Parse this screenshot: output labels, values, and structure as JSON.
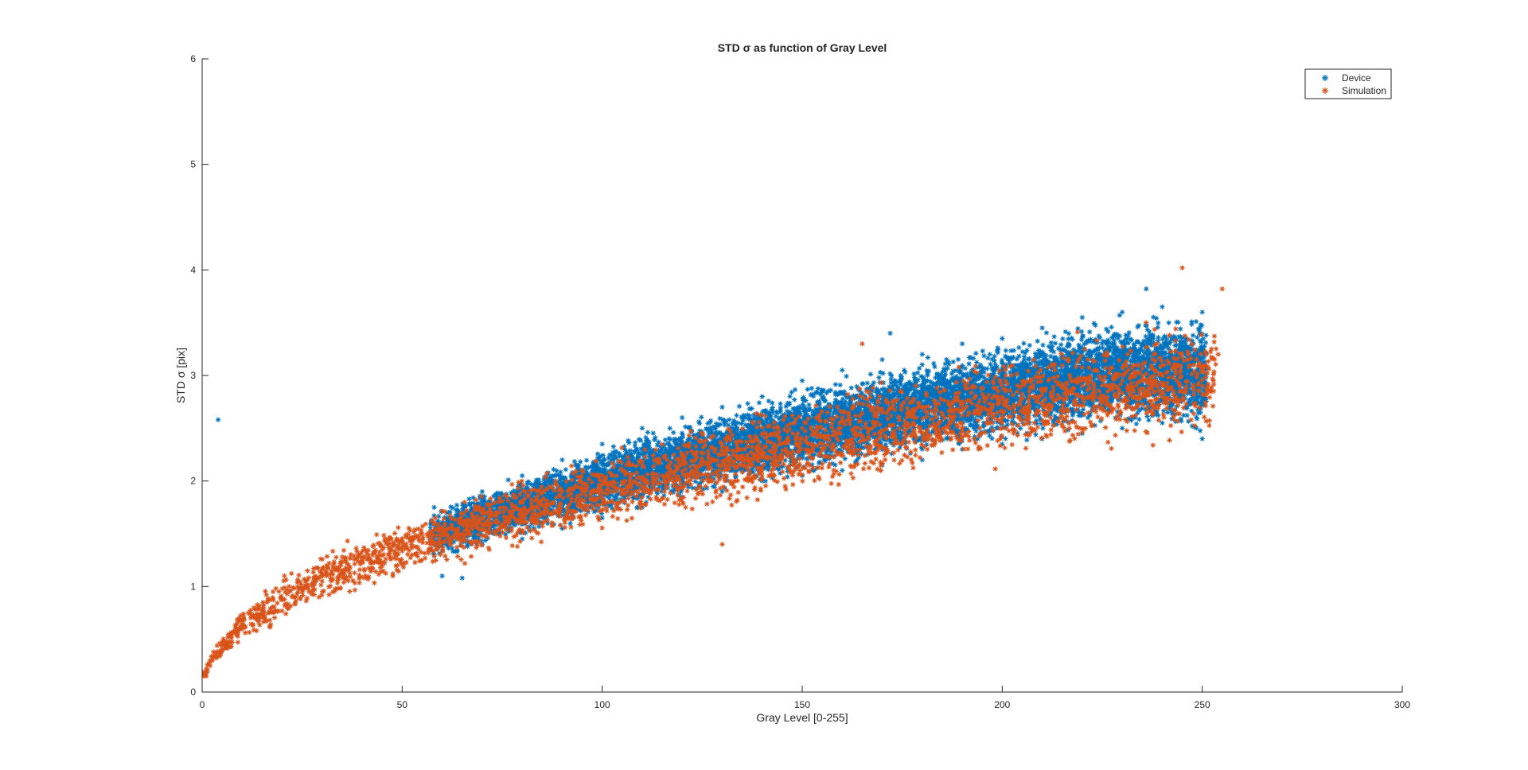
{
  "chart_data": {
    "type": "scatter",
    "title": "STD σ as function of Gray Level",
    "xlabel": "Gray Level [0-255]",
    "ylabel": "STD σ [pix]",
    "xlim": [
      0,
      300
    ],
    "ylim": [
      0,
      6
    ],
    "xticks": [
      "0",
      "50",
      "100",
      "150",
      "200",
      "250",
      "300"
    ],
    "yticks": [
      "0",
      "1",
      "2",
      "3",
      "4",
      "5",
      "6"
    ],
    "grid": false,
    "legend_position": "top-right",
    "marker": "asterisk",
    "series": [
      {
        "name": "Device",
        "color": "#0072BD",
        "description_points": [
          [
            4,
            2.58
          ],
          [
            58,
            1.3
          ],
          [
            58,
            1.75
          ],
          [
            60,
            1.1
          ],
          [
            65,
            1.08
          ],
          [
            70,
            1.4
          ],
          [
            70,
            1.9
          ],
          [
            80,
            1.45
          ],
          [
            80,
            2.05
          ],
          [
            90,
            1.55
          ],
          [
            90,
            2.2
          ],
          [
            100,
            1.65
          ],
          [
            100,
            2.35
          ],
          [
            110,
            1.75
          ],
          [
            110,
            2.5
          ],
          [
            120,
            1.85
          ],
          [
            120,
            2.6
          ],
          [
            130,
            1.9
          ],
          [
            130,
            2.7
          ],
          [
            140,
            2.0
          ],
          [
            140,
            2.8
          ],
          [
            150,
            2.05
          ],
          [
            150,
            2.95
          ],
          [
            160,
            2.1
          ],
          [
            160,
            3.05
          ],
          [
            170,
            2.15
          ],
          [
            170,
            3.15
          ],
          [
            172,
            3.4
          ],
          [
            180,
            2.2
          ],
          [
            180,
            3.2
          ],
          [
            190,
            2.3
          ],
          [
            190,
            3.3
          ],
          [
            200,
            2.35
          ],
          [
            200,
            3.35
          ],
          [
            210,
            2.4
          ],
          [
            210,
            3.45
          ],
          [
            220,
            2.45
          ],
          [
            220,
            3.55
          ],
          [
            230,
            2.5
          ],
          [
            230,
            3.6
          ],
          [
            236,
            3.82
          ],
          [
            240,
            2.55
          ],
          [
            240,
            3.65
          ],
          [
            250,
            2.4
          ],
          [
            250,
            3.6
          ]
        ],
        "envelope": {
          "x": [
            57,
            70,
            90,
            110,
            130,
            150,
            170,
            190,
            210,
            230,
            251
          ],
          "lower": [
            1.2,
            1.35,
            1.55,
            1.72,
            1.88,
            2.02,
            2.14,
            2.27,
            2.38,
            2.49,
            2.4
          ],
          "upper": [
            1.75,
            1.95,
            2.2,
            2.48,
            2.7,
            2.93,
            3.12,
            3.28,
            3.44,
            3.6,
            3.65
          ]
        },
        "count_drawn": 9000
      },
      {
        "name": "Simulation",
        "color": "#D95319",
        "description_points": [
          [
            1,
            0.15
          ],
          [
            2,
            0.25
          ],
          [
            5,
            0.4
          ],
          [
            10,
            0.6
          ],
          [
            15,
            0.75
          ],
          [
            20,
            0.88
          ],
          [
            25,
            0.95
          ],
          [
            30,
            1.05
          ],
          [
            35,
            1.15
          ],
          [
            40,
            1.25
          ],
          [
            45,
            1.35
          ],
          [
            50,
            1.45
          ],
          [
            55,
            1.5
          ],
          [
            58,
            1.4
          ],
          [
            60,
            1.55
          ],
          [
            70,
            1.65
          ],
          [
            80,
            1.8
          ],
          [
            90,
            1.9
          ],
          [
            100,
            2.05
          ],
          [
            110,
            2.15
          ],
          [
            120,
            2.25
          ],
          [
            130,
            1.4
          ],
          [
            130,
            2.35
          ],
          [
            140,
            2.45
          ],
          [
            150,
            2.5
          ],
          [
            160,
            2.6
          ],
          [
            165,
            3.3
          ],
          [
            170,
            2.65
          ],
          [
            180,
            2.7
          ],
          [
            190,
            2.75
          ],
          [
            200,
            2.8
          ],
          [
            210,
            2.85
          ],
          [
            220,
            2.9
          ],
          [
            230,
            2.95
          ],
          [
            240,
            3.0
          ],
          [
            245,
            4.02
          ],
          [
            250,
            2.9
          ],
          [
            254,
            3.2
          ],
          [
            255,
            3.82
          ]
        ],
        "curve": {
          "x": [
            0.5,
            2,
            5,
            10,
            20,
            30,
            40,
            50,
            60,
            80,
            100,
            120,
            140,
            160,
            180,
            200,
            220,
            240,
            253
          ],
          "mean": [
            0.17,
            0.28,
            0.43,
            0.62,
            0.88,
            1.06,
            1.22,
            1.36,
            1.48,
            1.7,
            1.9,
            2.08,
            2.24,
            2.4,
            2.55,
            2.68,
            2.8,
            2.92,
            2.98
          ],
          "spread": [
            0.03,
            0.05,
            0.07,
            0.1,
            0.13,
            0.15,
            0.16,
            0.17,
            0.18,
            0.2,
            0.22,
            0.24,
            0.26,
            0.28,
            0.29,
            0.3,
            0.32,
            0.34,
            0.35
          ]
        },
        "count_drawn": 3200
      }
    ]
  }
}
